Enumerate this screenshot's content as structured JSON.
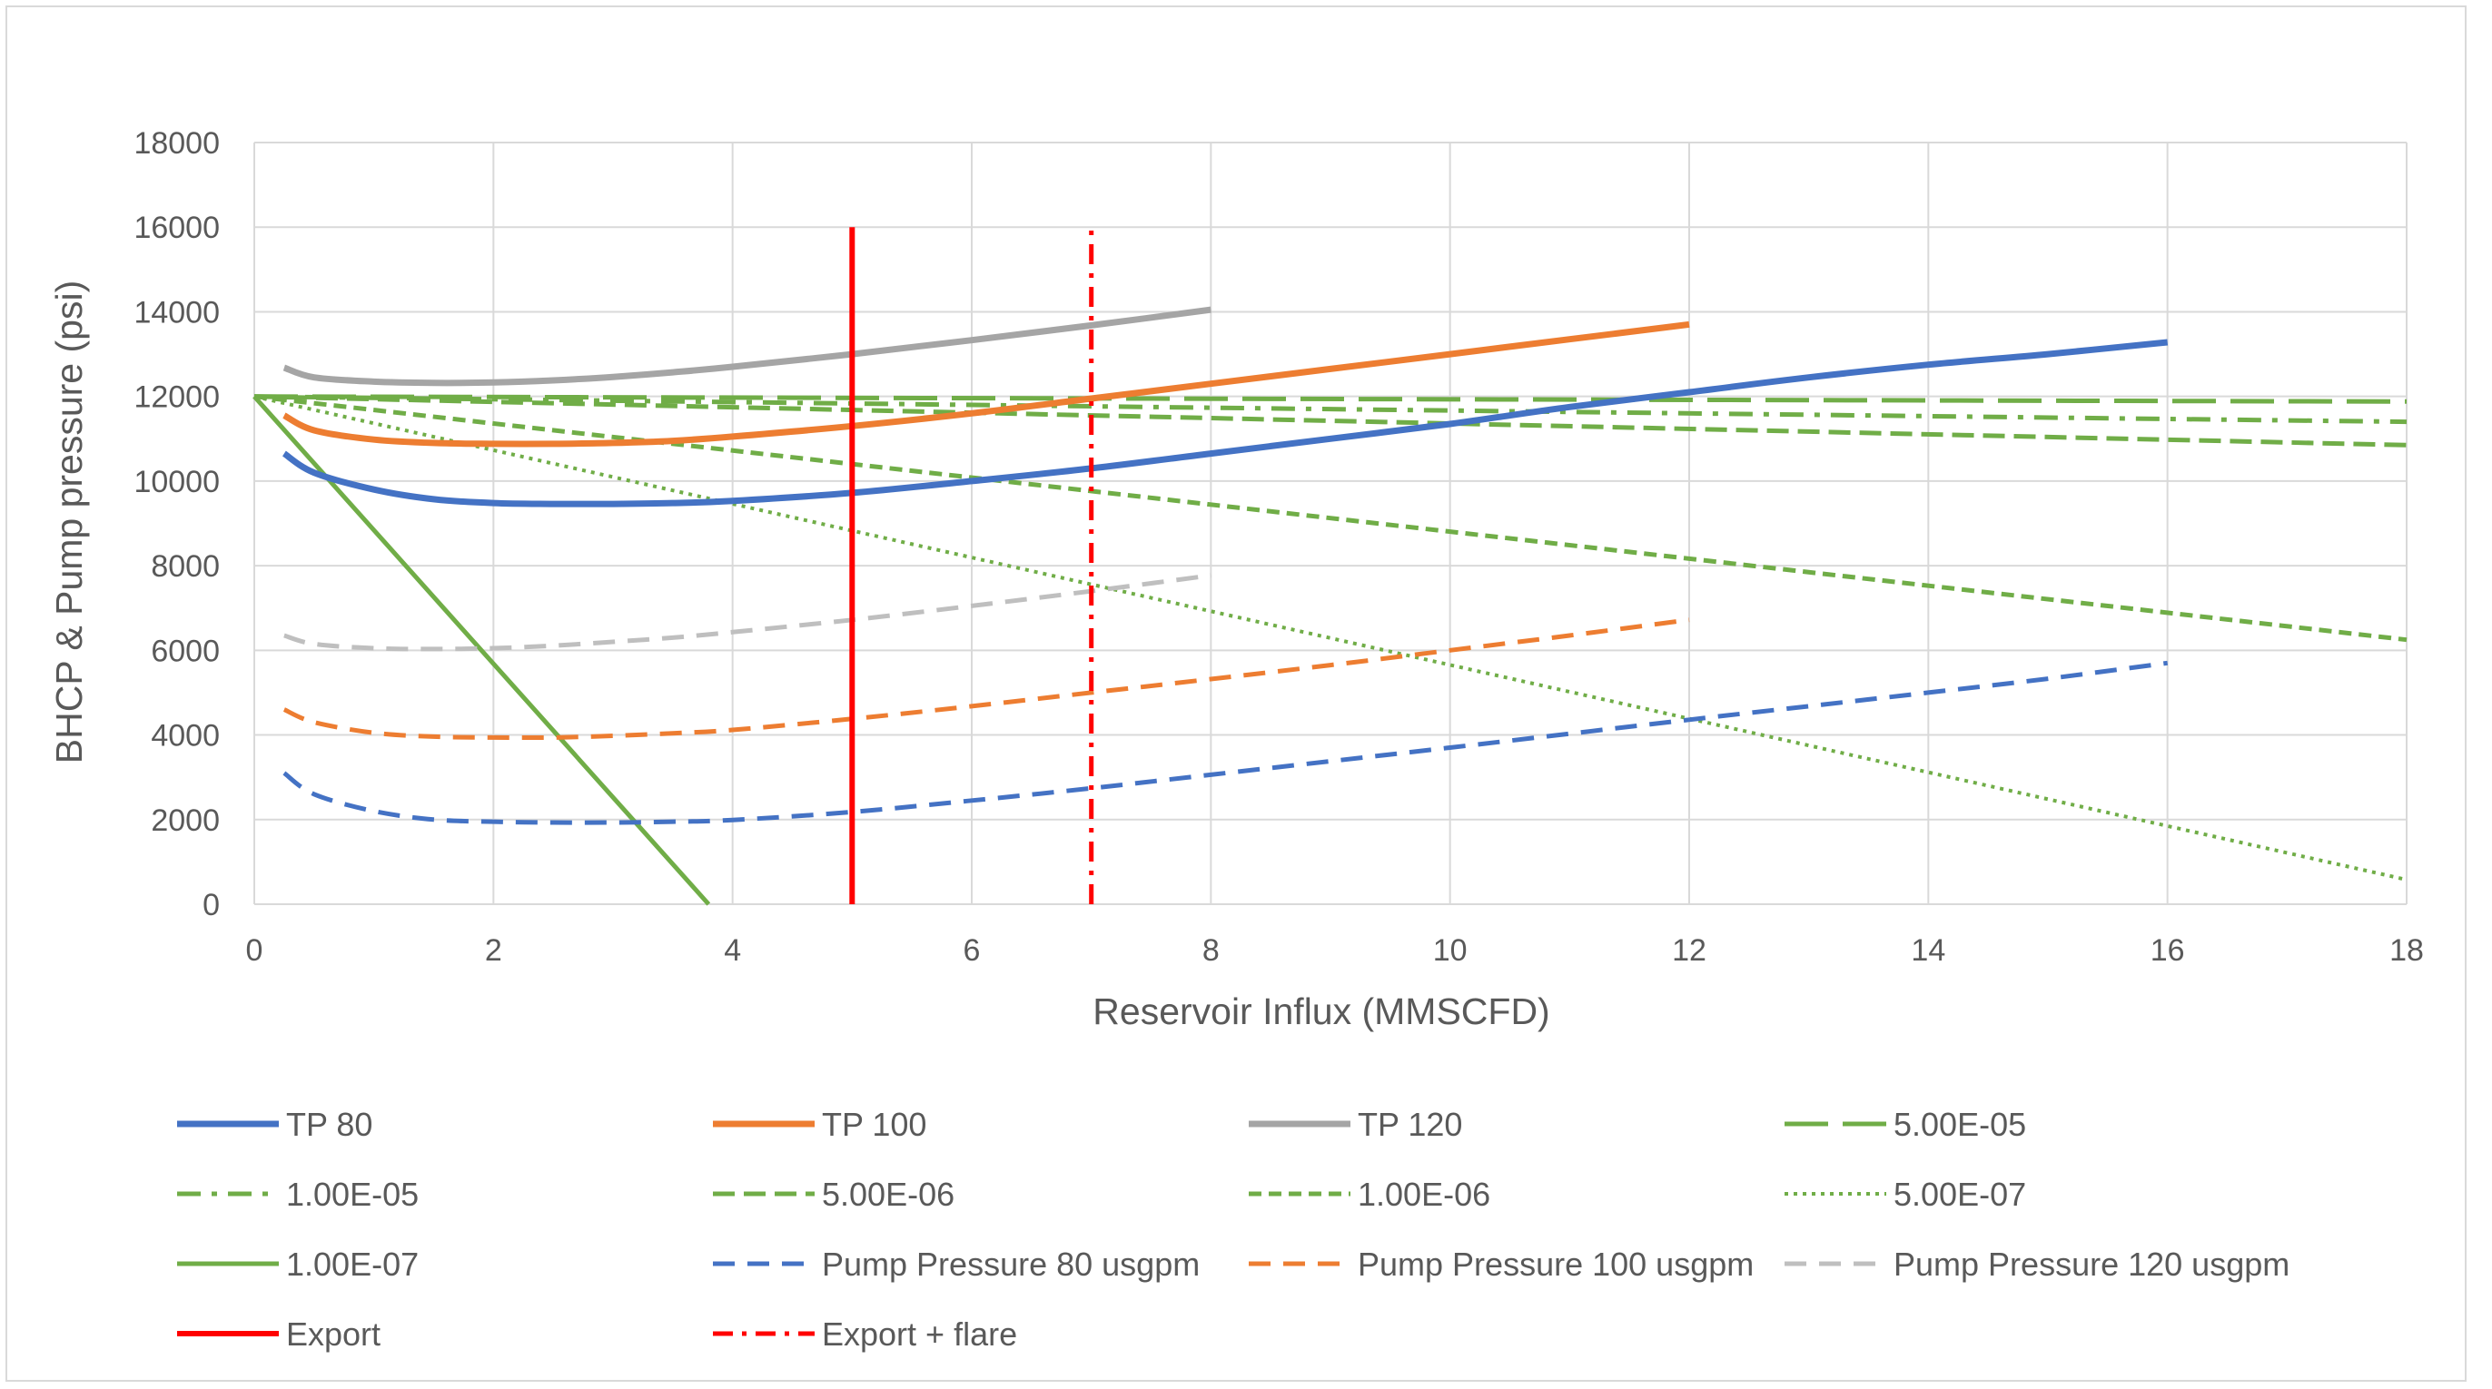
{
  "chart_data": {
    "type": "line",
    "title": "",
    "xlabel": "Reservoir Influx (MMSCFD)",
    "ylabel": "BHCP & Pump pressure (psi)",
    "xlim": [
      0,
      18
    ],
    "ylim": [
      0,
      18000
    ],
    "x_ticks": [
      "0",
      "2",
      "4",
      "6",
      "8",
      "10",
      "12",
      "14",
      "16",
      "18"
    ],
    "y_ticks": [
      "0",
      "2000",
      "4000",
      "6000",
      "8000",
      "10000",
      "12000",
      "14000",
      "16000",
      "18000"
    ],
    "grid": true,
    "legend_position": "bottom",
    "series": [
      {
        "name": "TP 80",
        "color": "#4472C4",
        "dash": "solid",
        "width": 7,
        "x": [
          0.25,
          0.5,
          1,
          1.5,
          2,
          2.5,
          3,
          3.5,
          4,
          5,
          6,
          7,
          8,
          9,
          10,
          11,
          12,
          13,
          14,
          15,
          16
        ],
        "y": [
          10650,
          10200,
          9800,
          9570,
          9480,
          9460,
          9460,
          9480,
          9530,
          9720,
          10000,
          10300,
          10650,
          11000,
          11350,
          11750,
          12100,
          12450,
          12750,
          13000,
          13280
        ]
      },
      {
        "name": "TP 100",
        "color": "#ED7D31",
        "dash": "solid",
        "width": 7,
        "x": [
          0.25,
          0.5,
          1,
          1.5,
          2,
          2.5,
          3,
          3.5,
          4,
          5,
          6,
          7,
          8,
          9,
          10,
          11,
          12
        ],
        "y": [
          11550,
          11200,
          10980,
          10900,
          10880,
          10880,
          10900,
          10950,
          11050,
          11300,
          11600,
          11950,
          12300,
          12650,
          13000,
          13350,
          13700
        ]
      },
      {
        "name": "TP 120",
        "color": "#A5A5A5",
        "dash": "solid",
        "width": 7,
        "x": [
          0.25,
          0.5,
          1,
          1.5,
          2,
          2.5,
          3,
          3.5,
          4,
          5,
          6,
          7,
          8
        ],
        "y": [
          12680,
          12450,
          12350,
          12320,
          12330,
          12380,
          12460,
          12570,
          12700,
          13000,
          13330,
          13680,
          14050
        ]
      },
      {
        "name": "5.00E-05",
        "color": "#70AD47",
        "dash": "48,16",
        "width": 5,
        "x": [
          0,
          18
        ],
        "y": [
          12000,
          11880
        ]
      },
      {
        "name": "1.00E-05",
        "color": "#70AD47",
        "dash": "26,12,6,12",
        "width": 5,
        "x": [
          0,
          18
        ],
        "y": [
          12000,
          11400
        ]
      },
      {
        "name": "5.00E-06",
        "color": "#70AD47",
        "dash": "24,10",
        "width": 5,
        "x": [
          0,
          18
        ],
        "y": [
          12000,
          10850
        ]
      },
      {
        "name": "1.00E-06",
        "color": "#70AD47",
        "dash": "14,8",
        "width": 5,
        "x": [
          0,
          18
        ],
        "y": [
          12000,
          6250
        ]
      },
      {
        "name": "5.00E-07",
        "color": "#70AD47",
        "dash": "4,6",
        "width": 4,
        "x": [
          0,
          18
        ],
        "y": [
          12000,
          580
        ]
      },
      {
        "name": "1.00E-07",
        "color": "#70AD47",
        "dash": "solid",
        "width": 5,
        "x": [
          0,
          3.8
        ],
        "y": [
          12000,
          0
        ]
      },
      {
        "name": "Pump Pressure 80 usgpm",
        "color": "#4472C4",
        "dash": "24,14",
        "width": 5,
        "x": [
          0.25,
          0.5,
          1,
          1.5,
          2,
          2.5,
          3,
          3.5,
          4,
          5,
          6,
          7,
          8,
          9,
          10,
          11,
          12,
          13,
          14,
          15,
          16
        ],
        "y": [
          3100,
          2600,
          2200,
          2000,
          1950,
          1930,
          1930,
          1950,
          1990,
          2180,
          2450,
          2740,
          3060,
          3380,
          3700,
          4030,
          4360,
          4680,
          5000,
          5330,
          5700
        ]
      },
      {
        "name": "Pump Pressure 100 usgpm",
        "color": "#ED7D31",
        "dash": "24,14",
        "width": 5,
        "x": [
          0.25,
          0.5,
          1,
          1.5,
          2,
          2.5,
          3,
          3.5,
          4,
          5,
          6,
          7,
          8,
          9,
          10,
          11,
          12
        ],
        "y": [
          4600,
          4300,
          4050,
          3960,
          3940,
          3940,
          3980,
          4040,
          4120,
          4380,
          4680,
          5000,
          5320,
          5650,
          6000,
          6350,
          6720
        ]
      },
      {
        "name": "Pump Pressure 120 usgpm",
        "color": "#BFBFBF",
        "dash": "24,14",
        "width": 5,
        "x": [
          0.25,
          0.5,
          1,
          1.5,
          2,
          2.5,
          3,
          3.5,
          4,
          5,
          6,
          7,
          8
        ],
        "y": [
          6350,
          6150,
          6050,
          6030,
          6050,
          6110,
          6200,
          6300,
          6430,
          6720,
          7050,
          7400,
          7770
        ]
      },
      {
        "name": "Export",
        "color": "#FF0000",
        "dash": "solid",
        "width": 6,
        "x": [
          5,
          5
        ],
        "y": [
          0,
          16000
        ]
      },
      {
        "name": "Export + flare",
        "color": "#FF0000",
        "dash": "22,10,5,10",
        "width": 5,
        "x": [
          7,
          7
        ],
        "y": [
          0,
          16000
        ]
      }
    ]
  }
}
